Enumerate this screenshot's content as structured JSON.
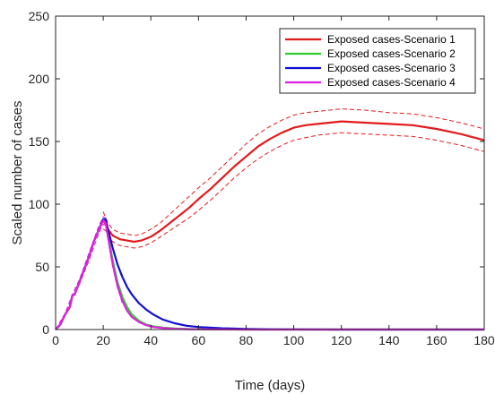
{
  "chart_data": {
    "type": "line",
    "title": "",
    "xlabel": "Time (days)",
    "ylabel": "Scaled number of cases",
    "xlim": [
      0,
      180
    ],
    "ylim": [
      0,
      250
    ],
    "xticks": [
      0,
      20,
      40,
      60,
      80,
      100,
      120,
      140,
      160,
      180
    ],
    "yticks": [
      0,
      50,
      100,
      150,
      200,
      250
    ],
    "grid": false,
    "legend_position": "top-right",
    "series": [
      {
        "name": "Exposed cases-Scenario 1",
        "color": "#e31a1c",
        "x": [
          0,
          2,
          4,
          6,
          7,
          8,
          10,
          12,
          14,
          16,
          18,
          20,
          21,
          22,
          24,
          27,
          30,
          33,
          36,
          40,
          44,
          48,
          52,
          56,
          60,
          65,
          70,
          75,
          80,
          85,
          90,
          95,
          100,
          105,
          110,
          115,
          120,
          130,
          140,
          150,
          160,
          170,
          180
        ],
        "y": [
          0,
          4,
          12,
          18,
          27,
          28,
          38,
          48,
          58,
          70,
          79,
          87,
          84,
          80,
          75,
          72,
          71,
          70,
          71,
          74,
          79,
          85,
          91,
          97,
          104,
          112,
          121,
          130,
          138,
          146,
          152,
          157,
          161,
          163,
          164,
          165,
          166,
          165,
          164,
          163,
          160,
          156,
          151
        ]
      },
      {
        "name": "Exposed cases-Scenario 2",
        "color": "#2ecc2e",
        "x": [
          0,
          2,
          4,
          6,
          7,
          8,
          10,
          12,
          14,
          16,
          18,
          20,
          21,
          22,
          24,
          26,
          28,
          30,
          32,
          35,
          38,
          41,
          45,
          50,
          55,
          60,
          70,
          80,
          100,
          120,
          140,
          160,
          180
        ],
        "y": [
          0,
          4,
          12,
          18,
          27,
          28,
          38,
          48,
          58,
          70,
          79,
          88,
          86,
          76,
          55,
          38,
          26,
          18,
          12,
          7,
          4,
          2.5,
          1.5,
          0.8,
          0.4,
          0.2,
          0.1,
          0,
          0,
          0,
          0,
          0,
          0
        ]
      },
      {
        "name": "Exposed cases-Scenario 3",
        "color": "#1010d0",
        "x": [
          0,
          2,
          4,
          6,
          7,
          8,
          10,
          12,
          14,
          16,
          18,
          20,
          21,
          22,
          24,
          26,
          28,
          30,
          32,
          35,
          38,
          41,
          45,
          50,
          55,
          60,
          70,
          80,
          90,
          100,
          120,
          140,
          160,
          180
        ],
        "y": [
          0,
          4,
          12,
          18,
          27,
          28,
          38,
          48,
          58,
          70,
          79,
          88,
          88,
          80,
          65,
          52,
          42,
          34,
          28,
          21,
          16,
          12,
          8,
          5,
          3,
          2,
          1,
          0.5,
          0.2,
          0.1,
          0,
          0,
          0,
          0
        ]
      },
      {
        "name": "Exposed cases-Scenario 4",
        "color": "#e020e0",
        "x": [
          0,
          2,
          4,
          6,
          7,
          8,
          10,
          12,
          14,
          16,
          18,
          20,
          21,
          22,
          24,
          26,
          28,
          30,
          32,
          35,
          38,
          41,
          45,
          50,
          55,
          60,
          70,
          80,
          100,
          120,
          140,
          160,
          180
        ],
        "y": [
          0,
          4,
          12,
          18,
          27,
          28,
          38,
          48,
          58,
          70,
          79,
          87,
          85,
          74,
          52,
          35,
          23,
          15,
          10,
          6,
          3.5,
          2,
          1.2,
          0.6,
          0.3,
          0.2,
          0.1,
          0,
          0,
          0,
          0,
          0,
          0
        ]
      }
    ],
    "bands": [
      {
        "color": "#e31a1c",
        "x": [
          20,
          21,
          22,
          24,
          27,
          30,
          33,
          36,
          40,
          44,
          48,
          52,
          56,
          60,
          65,
          70,
          75,
          80,
          85,
          90,
          95,
          100,
          105,
          110,
          115,
          120,
          130,
          140,
          150,
          160,
          170,
          180
        ],
        "upper": [
          94,
          89,
          85,
          80,
          77,
          76,
          75,
          76,
          80,
          85,
          92,
          99,
          106,
          113,
          121,
          130,
          139,
          148,
          156,
          162,
          167,
          171,
          173,
          174,
          175,
          176,
          175,
          173,
          172,
          169,
          165,
          160
        ],
        "lower": [
          80,
          79,
          75,
          70,
          67,
          66,
          65,
          66,
          69,
          74,
          79,
          84,
          89,
          95,
          103,
          112,
          121,
          129,
          136,
          142,
          147,
          151,
          153,
          155,
          156,
          157,
          156,
          155,
          154,
          151,
          147,
          142
        ]
      },
      {
        "color": "#e020e0",
        "x": [
          0,
          4,
          7,
          10,
          14,
          18,
          20,
          21,
          22,
          24,
          26,
          28
        ],
        "upper": [
          0,
          13,
          28,
          40,
          61,
          82,
          90,
          89,
          78,
          55,
          38,
          26
        ],
        "lower": [
          0,
          11,
          26,
          36,
          55,
          76,
          84,
          83,
          72,
          50,
          33,
          21
        ]
      }
    ]
  }
}
